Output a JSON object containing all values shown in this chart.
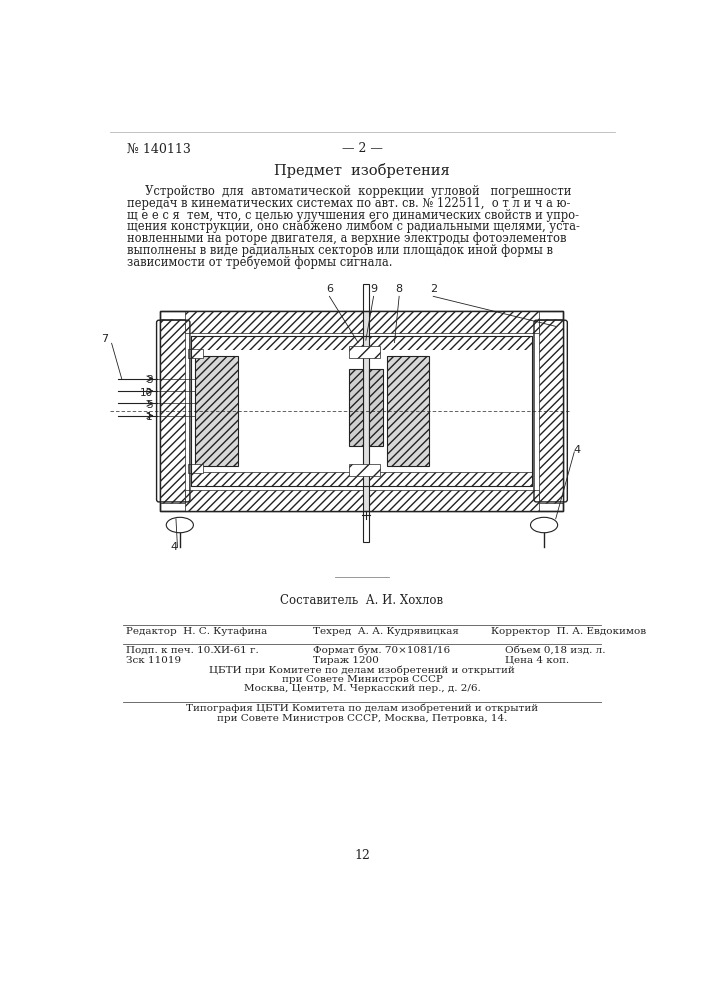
{
  "bg_color": "#ffffff",
  "page_bg": "#fafafa",
  "patent_number": "№ 140113",
  "page_number": "— 2 —",
  "section_title": "Предмет  изобретения",
  "text_line1": "     Устройство  для  автоматической  коррекции  угловой   погрешности",
  "text_line2": "передач в кинематических системах по авт. св. № 122511,  о т л и ч а ю-",
  "text_line3": "щ е е с я  тем, что, с целью улучшения его динамических свойств и упро-",
  "text_line4": "щения конструкции, оно снабжено лимбом с радиальными щелями, уста-",
  "text_line5": "новленными на роторе двигателя, а верхние электроды фотоэлементов",
  "text_line6": "выполнены в виде радиальных секторов или площадок иной формы в",
  "text_line7": "зависимости от требуемой формы сигнала.",
  "composer": "Составитель  А. И. Хохлов",
  "editor": "Редактор  Н. С. Кутафина",
  "techred": "Техред  А. А. Кудрявицкая",
  "korrektor": "Корректор  П. А. Евдокимов",
  "podp": "Подп. к печ. 10.ХИ-61 г.",
  "zsk": "Зск 11019",
  "format": "Формат бум. 70×1081/16",
  "tirazh": "Тираж 1200",
  "objem": "Объем 0,18 изд. л.",
  "cena": "Цена 4 коп.",
  "cbti1": "ЦБТИ при Комитете по делам изобретений и открытий",
  "cbti2": "при Совете Министров СССР",
  "cbti3": "Москва, Центр, М. Черкасский пер., д. 2/6.",
  "tipogr1": "Типография ЦБТИ Комитета по делам изобретений и открытий",
  "tipogr2": "при Совете Министров СССР, Москва, Петровка, 14.",
  "pagenum": "12"
}
